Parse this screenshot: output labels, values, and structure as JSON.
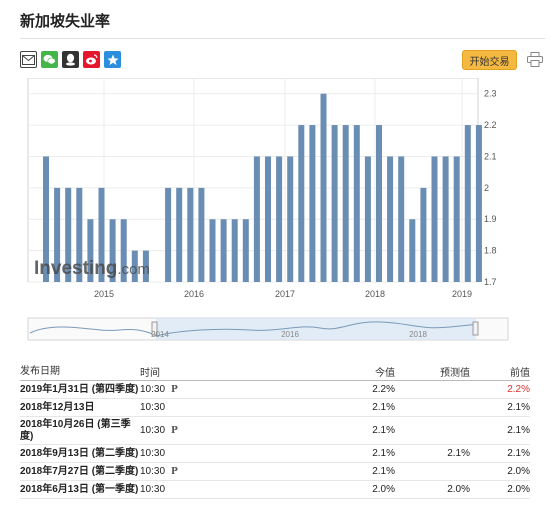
{
  "page_title": "新加坡失业率",
  "share_icons": [
    {
      "name": "mail-icon",
      "color": "#444444"
    },
    {
      "name": "wechat-icon",
      "color": "#44b549"
    },
    {
      "name": "qq-icon",
      "color": "#333333"
    },
    {
      "name": "weibo-icon",
      "color": "#e6162d"
    },
    {
      "name": "qzone-icon",
      "color": "#2b8fdd"
    }
  ],
  "trade_button_label": "开始交易",
  "chart_data": {
    "type": "bar",
    "bar_color": "#6a8db3",
    "ylim": [
      1.7,
      2.35
    ],
    "yticks": [
      "2.3",
      "2.2",
      "2.1",
      "2",
      "1.9",
      "1.8",
      "1.7"
    ],
    "xticks": [
      "2015",
      "2016",
      "2017",
      "2018",
      "2019"
    ],
    "values": [
      2.1,
      2.0,
      2.0,
      2.0,
      1.9,
      2.0,
      1.9,
      1.9,
      1.8,
      1.8,
      null,
      2.0,
      2.0,
      2.0,
      2.0,
      1.9,
      1.9,
      1.9,
      1.9,
      2.1,
      2.1,
      2.1,
      2.1,
      2.2,
      2.2,
      2.3,
      2.2,
      2.2,
      2.2,
      2.1,
      2.2,
      2.1,
      2.1,
      1.9,
      2.0,
      2.1,
      2.1,
      2.1,
      2.2,
      2.2
    ],
    "watermark": "Investing.com",
    "navigator_labels": [
      "2014",
      "2016",
      "2018"
    ]
  },
  "table": {
    "headers": {
      "date": "发布日期",
      "time": "时间",
      "actual": "今值",
      "forecast": "预测值",
      "previous": "前值"
    },
    "rows": [
      {
        "date": "2019年1月31日 (第四季度)",
        "time": "10:30",
        "prelim": "P",
        "actual": "2.2%",
        "forecast": "",
        "previous": "2.2%",
        "previous_red": true
      },
      {
        "date": "2018年12月13日",
        "time": "10:30",
        "prelim": "",
        "actual": "2.1%",
        "forecast": "",
        "previous": "2.1%",
        "previous_red": false
      },
      {
        "date": "2018年10月26日 (第三季度)",
        "time": "10:30",
        "prelim": "P",
        "actual": "2.1%",
        "forecast": "",
        "previous": "2.1%",
        "previous_red": false,
        "tall": true
      },
      {
        "date": "2018年9月13日 (第二季度)",
        "time": "10:30",
        "prelim": "",
        "actual": "2.1%",
        "forecast": "2.1%",
        "previous": "2.1%",
        "previous_red": false
      },
      {
        "date": "2018年7月27日 (第二季度)",
        "time": "10:30",
        "prelim": "P",
        "actual": "2.1%",
        "forecast": "",
        "previous": "2.0%",
        "previous_red": false
      },
      {
        "date": "2018年6月13日 (第一季度)",
        "time": "10:30",
        "prelim": "",
        "actual": "2.0%",
        "forecast": "2.0%",
        "previous": "2.0%",
        "previous_red": false
      }
    ]
  }
}
